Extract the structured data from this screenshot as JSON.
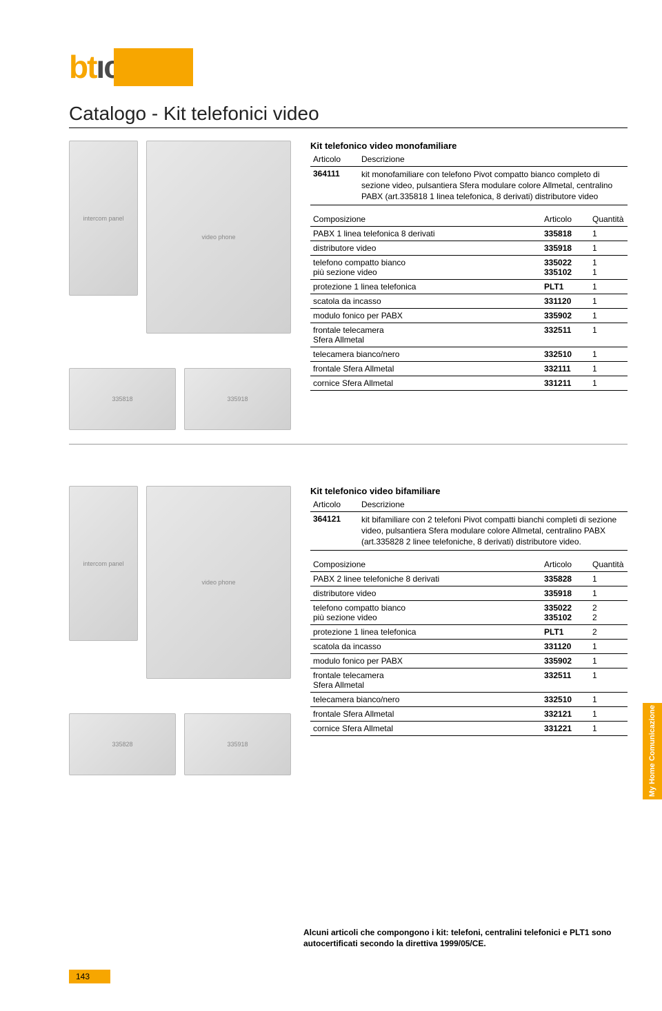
{
  "brand": {
    "logo_text_orange": "bt",
    "logo_text_gray": "ıcıno",
    "registered": "®",
    "accent_color": "#f7a600",
    "text_color": "#4a4a4a"
  },
  "page_title": "Catalogo - Kit telefonici video",
  "side_tab": "My Home Comunicazione",
  "footer_note": "Alcuni articoli che compongono i kit: telefoni, centralini telefonici e PLT1 sono autocertificati secondo la direttiva 1999/05/CE.",
  "page_number": "143",
  "sections": [
    {
      "kit_title": "Kit telefonico video monofamiliare",
      "desc_headers": {
        "articolo": "Articolo",
        "descrizione": "Descrizione"
      },
      "article": "364111",
      "description": "kit monofamiliare con telefono Pivot compatto bianco completo di sezione video, pulsantiera Sfera modulare colore Allmetal, centralino PABX (art.335818 1 linea telefonica, 8 derivati) distributore video",
      "comp_headers": {
        "comp": "Composizione",
        "art": "Articolo",
        "qty": "Quantità"
      },
      "rows": [
        {
          "comp": "PABX 1 linea telefonica 8 derivati",
          "art": "335818",
          "qty": "1"
        },
        {
          "comp": "distributore video",
          "art": "335918",
          "qty": "1"
        },
        {
          "comp": "telefono compatto bianco\npiù sezione video",
          "art": "335022\n335102",
          "qty": "1\n1"
        },
        {
          "comp": "protezione 1 linea telefonica",
          "art": "PLT1",
          "qty": "1"
        },
        {
          "comp": "scatola da incasso",
          "art": "331120",
          "qty": "1"
        },
        {
          "comp": "modulo fonico per PABX",
          "art": "335902",
          "qty": "1"
        },
        {
          "comp": "frontale telecamera\nSfera Allmetal",
          "art": "332511",
          "qty": "1"
        },
        {
          "comp": "telecamera bianco/nero",
          "art": "332510",
          "qty": "1"
        },
        {
          "comp": "frontale Sfera Allmetal",
          "art": "332111",
          "qty": "1"
        },
        {
          "comp": "cornice Sfera Allmetal",
          "art": "331211",
          "qty": "1"
        }
      ],
      "images": {
        "panel": "intercom panel",
        "phone": "video phone",
        "mod1": "335818",
        "mod2": "335918"
      }
    },
    {
      "kit_title": "Kit telefonico video bifamiliare",
      "desc_headers": {
        "articolo": "Articolo",
        "descrizione": "Descrizione"
      },
      "article": "364121",
      "description": "kit bifamiliare con 2 telefoni Pivot compatti bianchi completi di sezione video, pulsantiera Sfera modulare colore Allmetal, centralino PABX (art.335828 2 linee telefoniche, 8 derivati) distributore video.",
      "comp_headers": {
        "comp": "Composizione",
        "art": "Articolo",
        "qty": "Quantità"
      },
      "rows": [
        {
          "comp": "PABX 2 linee telefoniche 8 derivati",
          "art": "335828",
          "qty": "1"
        },
        {
          "comp": "distributore video",
          "art": "335918",
          "qty": "1"
        },
        {
          "comp": "telefono compatto bianco\npiù sezione video",
          "art": "335022\n335102",
          "qty": "2\n2"
        },
        {
          "comp": "protezione 1 linea telefonica",
          "art": "PLT1",
          "qty": "2"
        },
        {
          "comp": "scatola da incasso",
          "art": "331120",
          "qty": "1"
        },
        {
          "comp": "modulo fonico per PABX",
          "art": "335902",
          "qty": "1"
        },
        {
          "comp": "frontale telecamera\nSfera Allmetal",
          "art": "332511",
          "qty": "1"
        },
        {
          "comp": "telecamera bianco/nero",
          "art": "332510",
          "qty": "1"
        },
        {
          "comp": "frontale Sfera Allmetal",
          "art": "332121",
          "qty": "1"
        },
        {
          "comp": "cornice Sfera Allmetal",
          "art": "331221",
          "qty": "1"
        }
      ],
      "images": {
        "panel": "intercom panel",
        "phone": "video phone",
        "mod1": "335828",
        "mod2": "335918"
      }
    }
  ]
}
